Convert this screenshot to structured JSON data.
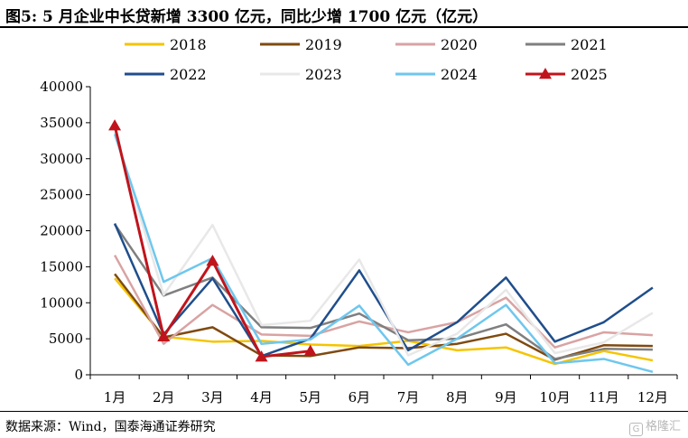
{
  "figure": {
    "title": "图5:  5 月企业中长贷新增 3300 亿元，同比少增 1700 亿元（亿元）",
    "source": "数据来源：Wind，国泰海通证券研究",
    "watermark": "格隆汇"
  },
  "chart_data": {
    "type": "line",
    "title": "",
    "xlabel": "",
    "ylabel": "",
    "categories": [
      "1月",
      "2月",
      "3月",
      "4月",
      "5月",
      "6月",
      "7月",
      "8月",
      "9月",
      "10月",
      "11月",
      "12月"
    ],
    "ylim": [
      0,
      40000
    ],
    "yticks": [
      0,
      5000,
      10000,
      15000,
      20000,
      25000,
      30000,
      35000,
      40000
    ],
    "grid": false,
    "legend": "top",
    "series": [
      {
        "name": "2018",
        "color": "#F5C400",
        "values": [
          13400,
          5300,
          4600,
          4700,
          4200,
          4000,
          4700,
          3400,
          3800,
          1500,
          3300,
          2000
        ]
      },
      {
        "name": "2019",
        "color": "#7F4A10",
        "values": [
          14000,
          5200,
          6600,
          2700,
          2600,
          3800,
          3700,
          4300,
          5700,
          2100,
          4100,
          4000
        ]
      },
      {
        "name": "2020",
        "color": "#D9A3A3",
        "values": [
          16600,
          4300,
          9700,
          5600,
          5400,
          7400,
          5900,
          7300,
          10700,
          3800,
          5900,
          5500
        ]
      },
      {
        "name": "2021",
        "color": "#7F7F7F",
        "values": [
          20900,
          11000,
          13500,
          6600,
          6500,
          8500,
          4800,
          5000,
          7000,
          2200,
          3600,
          3500
        ]
      },
      {
        "name": "2022",
        "color": "#1F4E8C",
        "values": [
          21000,
          5600,
          13400,
          2600,
          5000,
          14500,
          3400,
          7300,
          13500,
          4600,
          7300,
          12100
        ]
      },
      {
        "name": "2023",
        "color": "#E8E8E8",
        "values": [
          33600,
          11100,
          20800,
          6900,
          7500,
          16000,
          2700,
          5700,
          11800,
          3000,
          4500,
          8600
        ]
      },
      {
        "name": "2024",
        "color": "#6EC7EE",
        "values": [
          33400,
          12900,
          16200,
          4300,
          4900,
          9600,
          1400,
          5000,
          9700,
          1600,
          2200,
          400
        ]
      },
      {
        "name": "2025",
        "color": "#C0141C",
        "marker": "triangle",
        "values": [
          34600,
          5300,
          15800,
          2500,
          3300,
          null,
          null,
          null,
          null,
          null,
          null,
          null
        ]
      }
    ]
  }
}
